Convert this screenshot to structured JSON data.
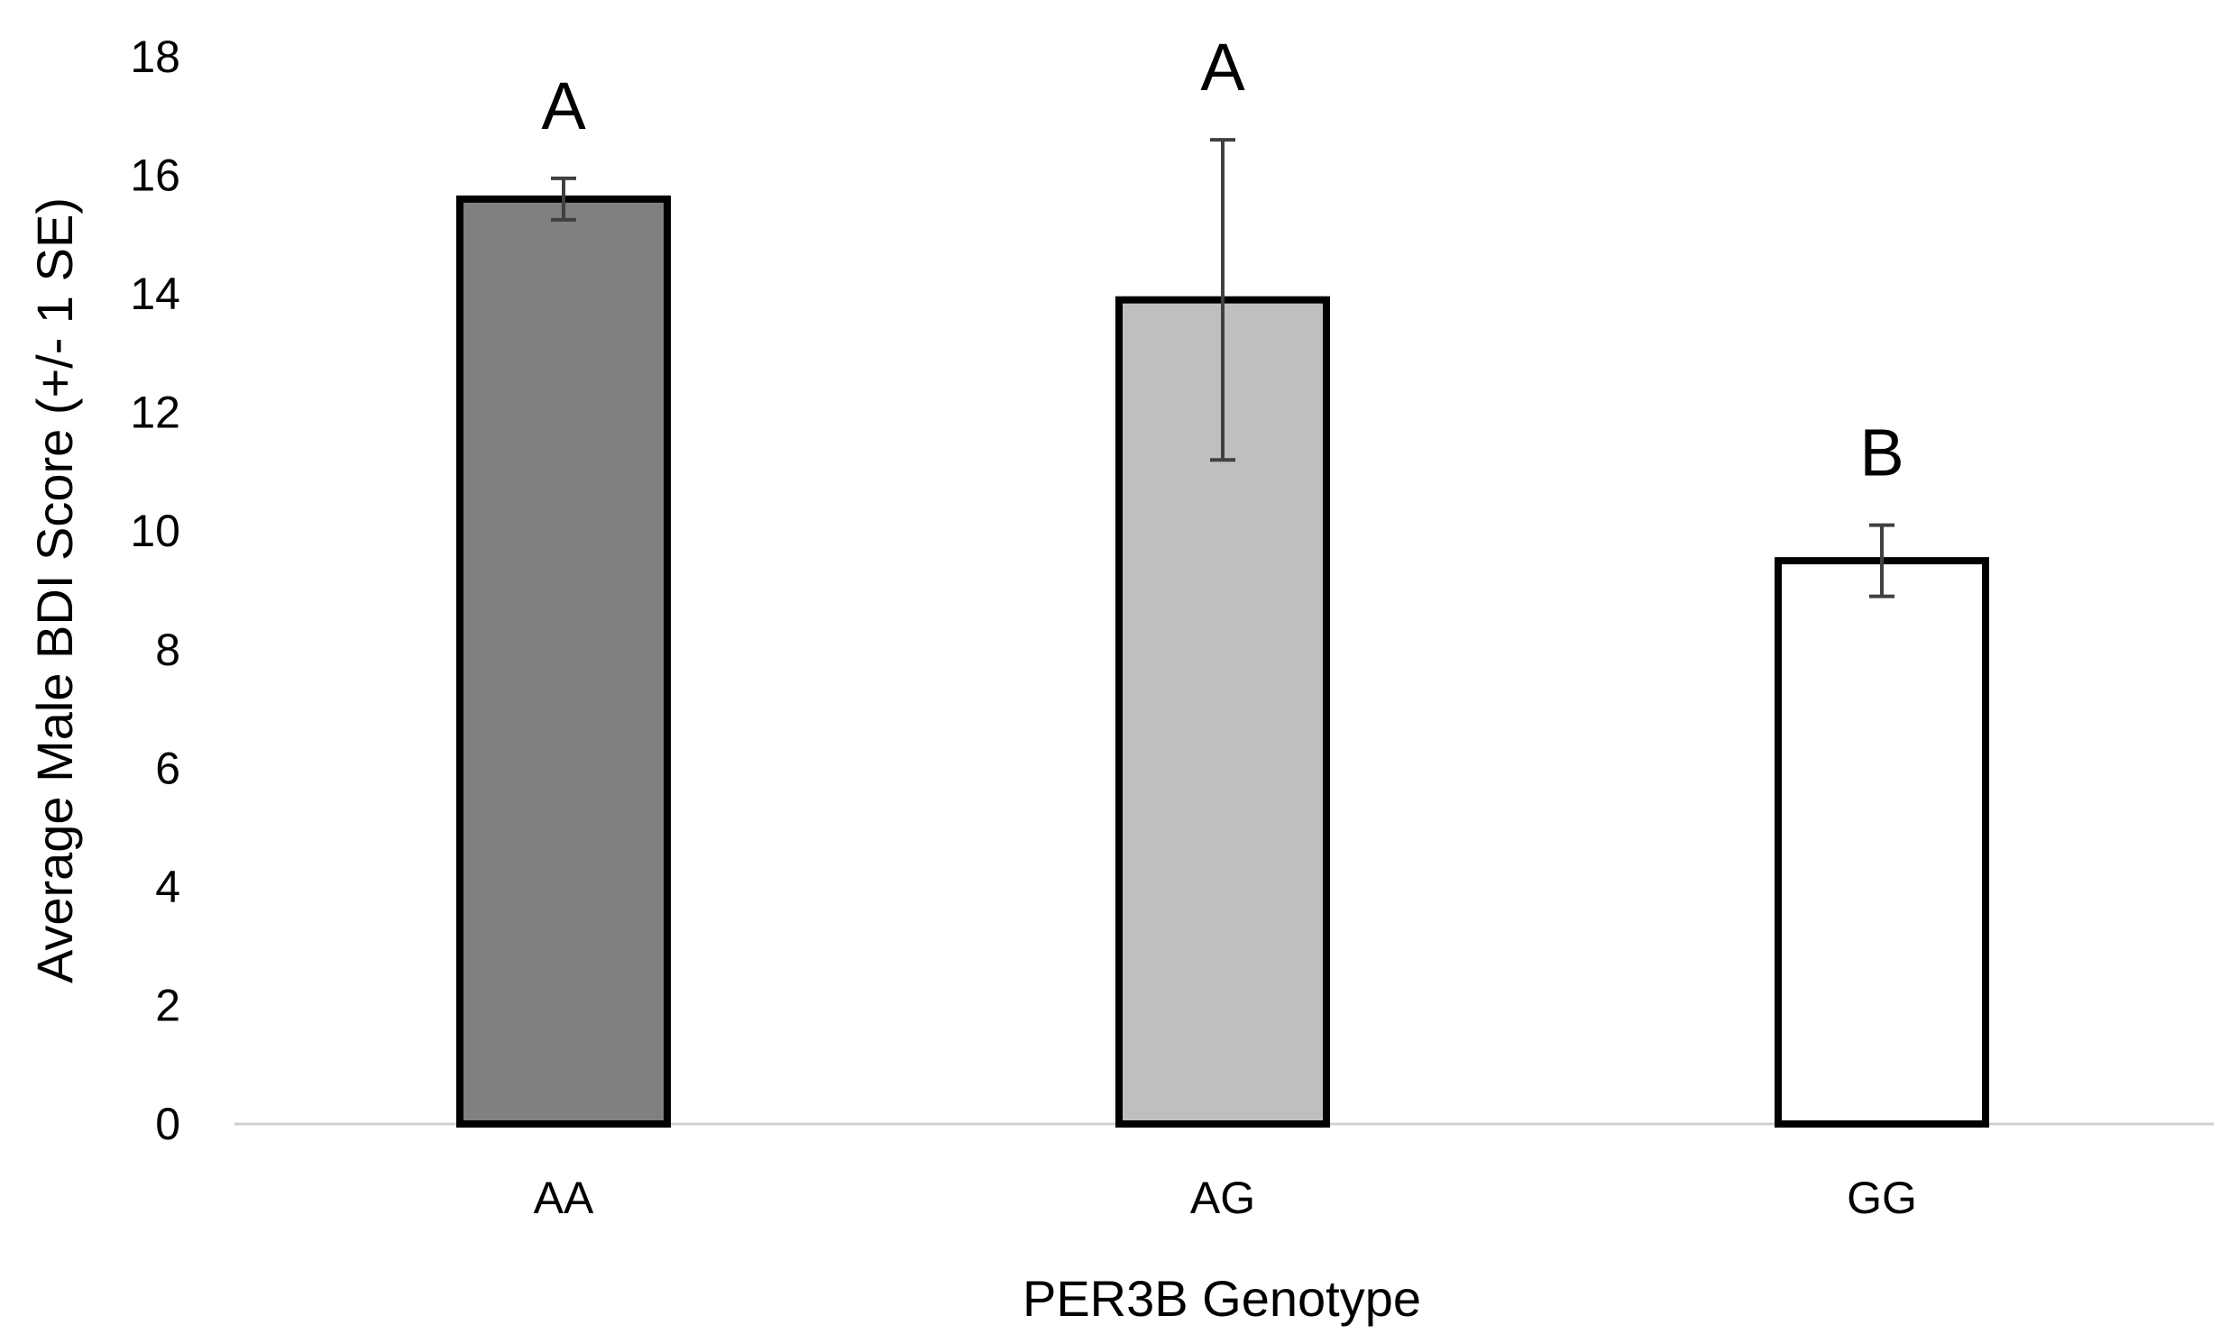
{
  "chart_data": {
    "type": "bar",
    "title": "",
    "xlabel": "PER3B Genotype",
    "ylabel": "Average Male BDI Score (+/- 1 SE)",
    "ylim": [
      0,
      18
    ],
    "yticks": [
      0,
      2,
      4,
      6,
      8,
      10,
      12,
      14,
      16,
      18
    ],
    "grid": false,
    "legend": "none",
    "categories": [
      "AA",
      "AG",
      "GG"
    ],
    "values": [
      15.6,
      13.9,
      9.5
    ],
    "error": [
      0.35,
      2.7,
      0.6
    ],
    "significance_labels": [
      "A",
      "A",
      "B"
    ],
    "bar_colors": [
      "#808080",
      "#bfbfbf",
      "#ffffff"
    ],
    "bar_edge_color": "#000000",
    "error_bar_color": "#404040",
    "axis_line_color": "#d0d0d0"
  }
}
